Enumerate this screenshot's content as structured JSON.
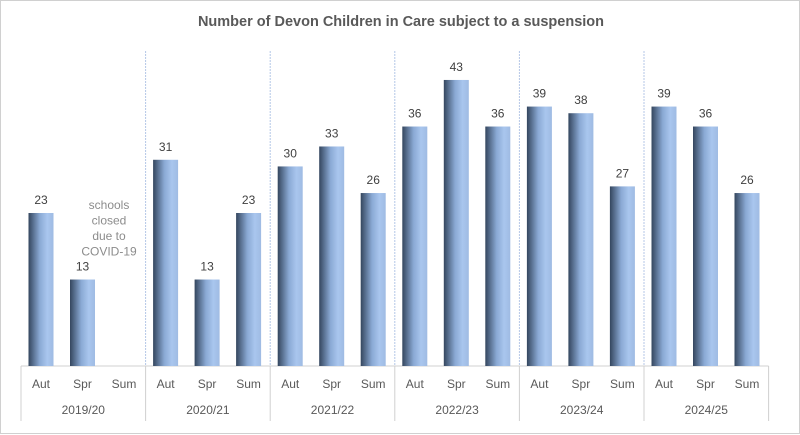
{
  "chart_data": {
    "type": "bar",
    "title": "Number of Devon Children in Care subject to a suspension",
    "groups": [
      "2019/20",
      "2020/21",
      "2021/22",
      "2022/23",
      "2023/24",
      "2024/25"
    ],
    "terms": [
      "Aut",
      "Spr",
      "Sum"
    ],
    "values": [
      [
        23,
        13,
        null
      ],
      [
        31,
        13,
        23
      ],
      [
        30,
        33,
        26
      ],
      [
        36,
        43,
        36
      ],
      [
        39,
        38,
        27
      ],
      [
        39,
        36,
        26
      ]
    ],
    "annotation": [
      "schools",
      "closed",
      "due to",
      "COVID-19"
    ],
    "ylim": [
      0,
      45
    ],
    "grid": false,
    "legend": "none",
    "colors": {
      "bar_light": "#a9c6ee",
      "bar_dark": "#34465e",
      "separator": "#b4c7e7",
      "axis": "#d0d0d0"
    }
  }
}
